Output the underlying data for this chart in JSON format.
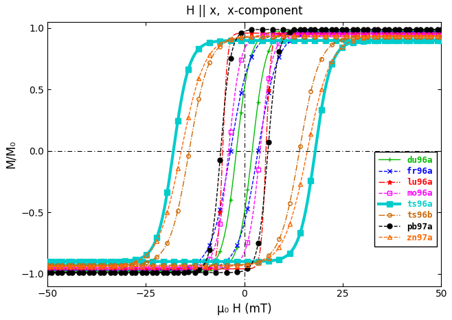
{
  "title": "H || x,  x-component",
  "xlabel": "μ₀ H (mT)",
  "ylabel": "M/M₀",
  "xlim": [
    -50,
    50
  ],
  "ylim": [
    -1.1,
    1.05
  ],
  "yticks": [
    -1.0,
    -0.5,
    0.0,
    0.5,
    1.0
  ],
  "xticks": [
    -50,
    -25,
    0,
    25,
    50
  ],
  "series": [
    {
      "name": "du96a",
      "color": "#00bb00",
      "linestyle": "-",
      "marker": "+",
      "markersize": 4,
      "linewidth": 1.0,
      "Hc": 2.0,
      "steep": 3.5,
      "Ms": 0.98
    },
    {
      "name": "fr96a",
      "color": "#0000ff",
      "linestyle": "--",
      "marker": "x",
      "markersize": 4,
      "linewidth": 1.0,
      "Hc": 3.5,
      "steep": 5.0,
      "Ms": 0.97
    },
    {
      "name": "lu96a",
      "color": "#ff0000",
      "linestyle": "-.",
      "marker": "*",
      "markersize": 5,
      "linewidth": 1.0,
      "Hc": 5.5,
      "steep": 1.2,
      "Ms": 0.96
    },
    {
      "name": "mo96a",
      "color": "#ff00ff",
      "linestyle": "--",
      "marker": "s",
      "markersize": 4,
      "linewidth": 1.0,
      "markerfacecolor": "none",
      "Hc": 4.0,
      "steep": 3.0,
      "Ms": 0.95
    },
    {
      "name": "ts96a",
      "color": "#00cccc",
      "linestyle": "-",
      "marker": "s",
      "markersize": 6,
      "linewidth": 3.0,
      "Hc": 18.0,
      "steep": 4.0,
      "Ms": 0.9
    },
    {
      "name": "ts96b",
      "color": "#cc6600",
      "linestyle": "-.",
      "marker": "o",
      "markersize": 4,
      "linewidth": 1.0,
      "markerfacecolor": "none",
      "Hc": 14.0,
      "steep": 5.0,
      "Ms": 0.93
    },
    {
      "name": "pb97a",
      "color": "#000000",
      "linestyle": "--",
      "marker": "o",
      "markersize": 5,
      "linewidth": 1.0,
      "Hc": 6.0,
      "steep": 2.5,
      "Ms": 0.99
    },
    {
      "name": "zn97a",
      "color": "#ff6600",
      "linestyle": "--",
      "marker": "^",
      "markersize": 4,
      "linewidth": 1.0,
      "markerfacecolor": "none",
      "Hc": 16.0,
      "steep": 6.0,
      "Ms": 0.94
    }
  ],
  "background_color": "#ffffff"
}
